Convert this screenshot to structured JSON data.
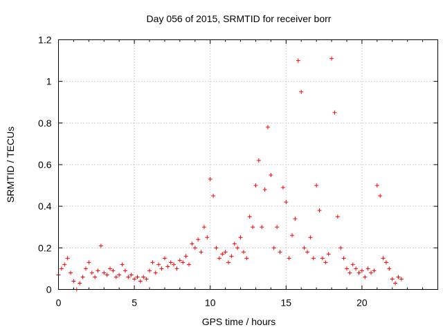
{
  "chart_data": {
    "type": "scatter",
    "title": "Day 056 of 2015, SRMTID for receiver borr",
    "xlabel": "GPS time / hours",
    "ylabel": "SRMTID / TECUs",
    "xlim": [
      0,
      25
    ],
    "ylim": [
      0,
      1.2
    ],
    "xticks": [
      0,
      5,
      10,
      15,
      20
    ],
    "xtick_labels": [
      "0",
      "5",
      "10",
      "15",
      "20"
    ],
    "yticks": [
      0,
      0.2,
      0.4,
      0.6,
      0.8,
      1,
      1.2
    ],
    "ytick_labels": [
      "0",
      "0.2",
      "0.4",
      "0.6",
      "0.8",
      "1",
      "1.2"
    ],
    "grid": true,
    "marker": "+",
    "color": "#ff0000",
    "series": [
      {
        "name": "SRMTID",
        "x": [
          0.0,
          0.2,
          0.4,
          0.6,
          0.8,
          1.0,
          1.2,
          1.4,
          1.6,
          1.8,
          2.0,
          2.2,
          2.4,
          2.6,
          2.8,
          3.0,
          3.2,
          3.4,
          3.6,
          3.8,
          4.0,
          4.2,
          4.4,
          4.6,
          4.8,
          5.0,
          5.2,
          5.4,
          5.6,
          5.8,
          6.0,
          6.2,
          6.4,
          6.6,
          6.8,
          7.0,
          7.2,
          7.4,
          7.6,
          7.8,
          8.0,
          8.2,
          8.4,
          8.6,
          8.8,
          9.0,
          9.2,
          9.4,
          9.6,
          9.8,
          10.0,
          10.2,
          10.4,
          10.6,
          10.8,
          11.0,
          11.2,
          11.4,
          11.6,
          11.8,
          12.0,
          12.2,
          12.4,
          12.6,
          12.8,
          13.0,
          13.2,
          13.4,
          13.6,
          13.8,
          14.0,
          14.2,
          14.4,
          14.6,
          14.8,
          15.0,
          15.2,
          15.4,
          15.6,
          15.8,
          16.0,
          16.2,
          16.4,
          16.6,
          16.8,
          17.0,
          17.2,
          17.4,
          17.6,
          17.8,
          18.0,
          18.2,
          18.4,
          18.6,
          18.8,
          19.0,
          19.2,
          19.4,
          19.6,
          19.8,
          20.0,
          20.2,
          20.4,
          20.6,
          20.8,
          21.0,
          21.2,
          21.4,
          21.6,
          21.8,
          22.0,
          22.2,
          22.4,
          22.6
        ],
        "y": [
          0.07,
          0.1,
          0.12,
          0.15,
          0.08,
          0.04,
          0.0,
          0.03,
          0.06,
          0.1,
          0.13,
          0.08,
          0.06,
          0.09,
          0.21,
          0.08,
          0.07,
          0.1,
          0.09,
          0.06,
          0.07,
          0.12,
          0.09,
          0.06,
          0.07,
          0.05,
          0.06,
          0.04,
          0.06,
          0.05,
          0.09,
          0.13,
          0.08,
          0.12,
          0.1,
          0.15,
          0.11,
          0.13,
          0.12,
          0.1,
          0.14,
          0.13,
          0.16,
          0.12,
          0.22,
          0.2,
          0.24,
          0.18,
          0.3,
          0.25,
          0.53,
          0.45,
          0.2,
          0.15,
          0.17,
          0.18,
          0.13,
          0.16,
          0.22,
          0.2,
          0.25,
          0.18,
          0.15,
          0.35,
          0.3,
          0.5,
          0.62,
          0.3,
          0.48,
          0.78,
          0.55,
          0.2,
          0.3,
          0.18,
          0.49,
          0.42,
          0.15,
          0.26,
          0.34,
          1.1,
          0.95,
          0.2,
          0.18,
          0.25,
          0.15,
          0.5,
          0.38,
          0.15,
          0.13,
          0.17,
          1.11,
          0.85,
          0.35,
          0.2,
          0.15,
          0.1,
          0.08,
          0.12,
          0.1,
          0.08,
          0.09,
          0.06,
          0.1,
          0.08,
          0.09,
          0.5,
          0.45,
          0.15,
          0.13,
          0.1,
          0.05,
          0.03,
          0.06,
          0.05
        ]
      }
    ]
  }
}
